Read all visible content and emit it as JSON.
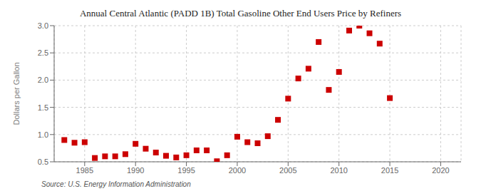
{
  "chart_data": {
    "type": "scatter",
    "title": "Annual Central Atlantic (PADD 1B) Total Gasoline Other End Users Price by Refiners",
    "ylabel": "Dollars per Gallon",
    "annotations": [
      "Source: U.S. Energy Information Administration"
    ],
    "x": [
      1983,
      1984,
      1985,
      1986,
      1987,
      1988,
      1989,
      1990,
      1991,
      1992,
      1993,
      1994,
      1995,
      1996,
      1997,
      1998,
      1999,
      2000,
      2001,
      2002,
      2003,
      2004,
      2005,
      2006,
      2007,
      2008,
      2009,
      2010,
      2011,
      2012,
      2013,
      2014,
      2015
    ],
    "values": [
      0.9,
      0.85,
      0.86,
      0.57,
      0.6,
      0.6,
      0.64,
      0.83,
      0.74,
      0.67,
      0.61,
      0.58,
      0.62,
      0.71,
      0.71,
      0.51,
      0.62,
      0.96,
      0.86,
      0.84,
      0.97,
      1.27,
      1.66,
      2.03,
      2.21,
      2.7,
      1.82,
      2.15,
      2.91,
      3.0,
      2.86,
      2.67,
      1.67
    ],
    "color": "#cc0000",
    "marker": "square",
    "xlim": [
      1982,
      2022
    ],
    "xticks": [
      1985,
      1990,
      1995,
      2000,
      2005,
      2010,
      2015,
      2020
    ],
    "ylim": [
      0.5,
      3.0
    ],
    "yticks": [
      0.5,
      {
        "value": 1.0,
        "label": "1.0"
      },
      1.5,
      {
        "value": 2.0,
        "label": "2.0"
      },
      2.5,
      {
        "value": 3.0,
        "label": "3.0"
      }
    ],
    "grid": true
  }
}
